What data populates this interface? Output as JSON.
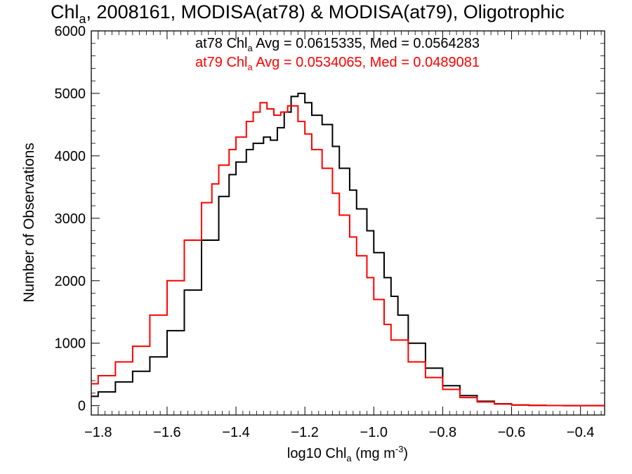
{
  "chart_data": {
    "type": "line",
    "title_main": "Chl",
    "title_sub": "a",
    "title_rest": ", 2008161, MODISA(at78) & MODISA(at79), Oligotrophic",
    "xlabel_prefix": "log10 Chl",
    "xlabel_sub": "a",
    "xlabel_unit": " (mg m",
    "xlabel_sup": "-3",
    "xlabel_close": ")",
    "ylabel": "Number of Observations",
    "xlim": [
      -1.82,
      -0.33
    ],
    "ylim": [
      -150,
      6000
    ],
    "xticks": [
      -1.8,
      -1.6,
      -1.4,
      -1.2,
      -1.0,
      -0.8,
      -0.6,
      -0.4
    ],
    "xtick_labels": [
      "−1.8",
      "−1.6",
      "−1.4",
      "−1.2",
      "−1.0",
      "−0.8",
      "−0.6",
      "−0.4"
    ],
    "yticks": [
      0,
      1000,
      2000,
      3000,
      4000,
      5000,
      6000
    ],
    "ytick_labels": [
      "0",
      "1000",
      "2000",
      "3000",
      "4000",
      "5000",
      "6000"
    ],
    "grid": false,
    "annotations": [
      {
        "series": "at78",
        "name": "at78 Chl",
        "sub": "a",
        "text": " Avg = 0.0615335, Med = 0.0564283",
        "color": "#000000"
      },
      {
        "series": "at79",
        "name": "at79 Chl",
        "sub": "a",
        "text": " Avg = 0.0534065, Med = 0.0489081",
        "color": "#ff0000"
      }
    ],
    "series": [
      {
        "name": "at78",
        "color": "#000000",
        "x": [
          -1.82,
          -1.8,
          -1.75,
          -1.7,
          -1.65,
          -1.6,
          -1.55,
          -1.5,
          -1.45,
          -1.42,
          -1.4,
          -1.37,
          -1.35,
          -1.32,
          -1.3,
          -1.28,
          -1.26,
          -1.24,
          -1.22,
          -1.2,
          -1.18,
          -1.15,
          -1.12,
          -1.1,
          -1.07,
          -1.05,
          -1.02,
          -1.0,
          -0.97,
          -0.95,
          -0.93,
          -0.9,
          -0.85,
          -0.8,
          -0.75,
          -0.7,
          -0.65,
          -0.6,
          -0.55,
          -0.5,
          -0.45,
          -0.4,
          -0.35,
          -0.33
        ],
        "y": [
          150,
          220,
          380,
          550,
          780,
          1200,
          1850,
          2650,
          3350,
          3700,
          3900,
          4100,
          4200,
          4300,
          4250,
          4450,
          4700,
          4950,
          5000,
          4850,
          4650,
          4500,
          4150,
          3800,
          3450,
          3150,
          2800,
          2450,
          2050,
          1750,
          1450,
          1000,
          600,
          320,
          160,
          70,
          30,
          10,
          5,
          2,
          1,
          0,
          0,
          0
        ]
      },
      {
        "name": "at79",
        "color": "#ff0000",
        "x": [
          -1.82,
          -1.8,
          -1.75,
          -1.7,
          -1.65,
          -1.6,
          -1.55,
          -1.5,
          -1.47,
          -1.45,
          -1.42,
          -1.4,
          -1.37,
          -1.35,
          -1.33,
          -1.31,
          -1.29,
          -1.27,
          -1.25,
          -1.22,
          -1.2,
          -1.18,
          -1.15,
          -1.12,
          -1.1,
          -1.07,
          -1.05,
          -1.02,
          -1.0,
          -0.97,
          -0.95,
          -0.9,
          -0.85,
          -0.8,
          -0.75,
          -0.7,
          -0.65,
          -0.6,
          -0.55,
          -0.5,
          -0.45,
          -0.4,
          -0.35,
          -0.33
        ],
        "y": [
          350,
          480,
          700,
          950,
          1450,
          2000,
          2650,
          3250,
          3550,
          3850,
          4100,
          4300,
          4550,
          4700,
          4850,
          4750,
          4650,
          4700,
          4800,
          4550,
          4350,
          4100,
          3800,
          3400,
          3050,
          2700,
          2400,
          2050,
          1700,
          1300,
          1050,
          700,
          450,
          260,
          130,
          60,
          25,
          10,
          4,
          2,
          1,
          0,
          0,
          0
        ]
      }
    ]
  }
}
